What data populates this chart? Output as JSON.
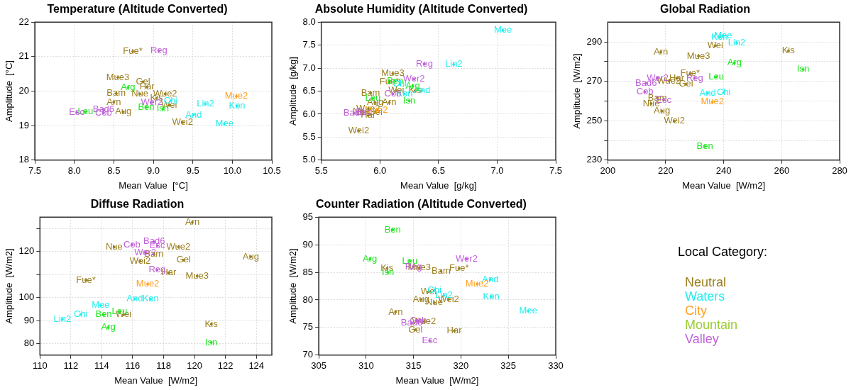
{
  "chart_data": [
    {
      "type": "scatter",
      "title": "Temperature (Altitude Converted)",
      "xlabel": "Mean Value  [°C]",
      "ylabel": "Amplitude  [°C]",
      "xlim": [
        7.5,
        10.5
      ],
      "ylim": [
        18,
        22
      ],
      "xticks": [
        7.5,
        {
          "value": 8,
          "label": "8.0"
        },
        8.5,
        {
          "value": 9,
          "label": "9.0"
        },
        9.5,
        {
          "value": 10,
          "label": "10.0"
        },
        10.5
      ],
      "yticks": [
        18,
        19,
        20,
        21,
        22
      ],
      "grid": true,
      "marker": "circle",
      "series": [
        {
          "color": "#9b7f1f",
          "x": [
            8.74,
            8.55,
            8.87,
            8.92,
            8.53,
            8.83,
            9.15,
            9.04,
            8.5,
            8.62,
            9.2,
            9.37
          ],
          "values": [
            21.15,
            20.4,
            20.27,
            20.12,
            19.93,
            19.92,
            19.92,
            19.79,
            19.68,
            19.4,
            19.59,
            19.09
          ],
          "value_labels": [
            "Fue*",
            "Mue3",
            "Gel",
            "Har",
            "Bam",
            "Nue",
            "Wue2",
            "Kis",
            "Arn",
            "Aug",
            "Wei",
            "Wei2"
          ]
        },
        {
          "color": "#22eeee",
          "x": [
            9.22,
            9.66,
            9.51,
            10.06,
            9.9
          ],
          "values": [
            19.72,
            19.63,
            19.31,
            19.57,
            19.05
          ],
          "value_labels": [
            "Chi",
            "Lin2",
            "And",
            "Kon",
            "Mee"
          ]
        },
        {
          "color": "#ffa020",
          "x": [
            10.05
          ],
          "values": [
            19.85
          ],
          "value_labels": [
            "Mue2"
          ]
        },
        {
          "color": "#22e622",
          "x": [
            8.68,
            8.91,
            9.12,
            8.14
          ],
          "values": [
            20.1,
            19.53,
            19.48,
            19.4
          ],
          "value_labels": [
            "Arg",
            "Ben",
            "Isn",
            "Leu"
          ]
        },
        {
          "color": "#c060d8",
          "x": [
            9.07,
            8.98,
            8.37,
            8.37,
            8.03
          ],
          "values": [
            21.17,
            19.67,
            19.47,
            19.37,
            19.38
          ],
          "value_labels": [
            "Reg",
            "Wer2",
            "Bad6",
            "Cob",
            "Esc"
          ]
        }
      ]
    },
    {
      "type": "scatter",
      "title": "Absolute Humidity (Altitude Converted)",
      "xlabel": "Mean Value  [g/kg]",
      "ylabel": "Amplitude  [g/kg]",
      "xlim": [
        5.5,
        7.5
      ],
      "ylim": [
        5,
        8
      ],
      "xticks": [
        5.5,
        {
          "value": 6,
          "label": "6.0"
        },
        6.5,
        {
          "value": 7,
          "label": "7.0"
        },
        7.5
      ],
      "yticks": [
        {
          "value": 5,
          "label": "5.0"
        },
        5.5,
        {
          "value": 6,
          "label": "6.0"
        },
        6.5,
        {
          "value": 7,
          "label": "7.0"
        },
        7.5,
        {
          "value": 8,
          "label": "8.0"
        }
      ],
      "grid": true,
      "marker": "circle",
      "series": [
        {
          "color": "#9b7f1f",
          "x": [
            6.08,
            6.11,
            5.96,
            5.9,
            5.92,
            5.84,
            5.9,
            6.3,
            6.08,
            5.96,
            6.14,
            5.82
          ],
          "values": [
            6.7,
            6.88,
            6.04,
            5.97,
            6.46,
            6.06,
            6.12,
            6.51,
            6.25,
            6.25,
            6.51,
            5.64
          ],
          "value_labels": [
            "Fue*",
            "Mue3",
            "Gel",
            "Har",
            "Bam",
            "Nue",
            "Wue2",
            "Kis",
            "Arn",
            "Aug",
            "Wei",
            "Wei2"
          ]
        },
        {
          "color": "#22eeee",
          "x": [
            6.17,
            6.63,
            6.36,
            6.21,
            7.05
          ],
          "values": [
            6.65,
            7.08,
            6.51,
            6.44,
            7.82
          ],
          "value_labels": [
            "Chi",
            "Lin2",
            "And",
            "Kon",
            "Mee"
          ]
        },
        {
          "color": "#ffa020",
          "x": [
            5.97
          ],
          "values": [
            6.09
          ],
          "value_labels": [
            "Mue2"
          ]
        },
        {
          "color": "#22e622",
          "x": [
            6.28,
            6.13,
            6.25,
            5.94
          ],
          "values": [
            6.61,
            6.72,
            6.29,
            6.34
          ],
          "value_labels": [
            "Arg",
            "Ben",
            "Isn",
            "Leu"
          ]
        },
        {
          "color": "#c060d8",
          "x": [
            6.38,
            6.29,
            5.78,
            6.11,
            5.86
          ],
          "values": [
            7.09,
            6.76,
            6.02,
            6.44,
            6.04
          ],
          "value_labels": [
            "Reg",
            "Wer2",
            "Bad6",
            "Cob",
            "Esc"
          ]
        }
      ]
    },
    {
      "type": "scatter",
      "title": "Global Radiation",
      "xlabel": "Mean Value  [W/m2]",
      "ylabel": "Amplitude  [W/m2]",
      "xlim": [
        200,
        280
      ],
      "ylim": [
        230,
        300
      ],
      "xticks": [
        200,
        220,
        240,
        260,
        280
      ],
      "yticks": [
        230,
        {
          "value": 240,
          "label": null
        },
        250,
        {
          "value": 260,
          "label": null
        },
        270,
        {
          "value": 280,
          "label": null
        },
        290
      ],
      "grid": true,
      "marker": "circle",
      "series": [
        {
          "color": "#9b7f1f",
          "x": [
            228.4,
            231.3,
            227,
            223.8,
            217.1,
            215,
            221.1,
            262.3,
            218.3,
            218.7,
            237.1,
            223
          ],
          "values": [
            273.9,
            282.8,
            268.5,
            271.6,
            261.6,
            258.7,
            270.2,
            285.4,
            284.8,
            254.9,
            288,
            249.8
          ],
          "value_labels": [
            "Fue*",
            "Mue3",
            "Gel",
            "Har",
            "Bam",
            "Nue",
            "Wue2",
            "Kis",
            "Arn",
            "Aug",
            "Wei",
            "Wei2"
          ]
        },
        {
          "color": "#22eeee",
          "x": [
            240,
            244.5,
            234.5,
            238.6,
            239.8
          ],
          "values": [
            264.4,
            289.4,
            263.9,
            292.3,
            293.2
          ],
          "value_labels": [
            "Chi",
            "Lin2",
            "And",
            "Kon",
            "Mee"
          ]
        },
        {
          "color": "#ffa020",
          "x": [
            236.1
          ],
          "values": [
            259.5
          ],
          "value_labels": [
            "Mue2"
          ]
        },
        {
          "color": "#22e622",
          "x": [
            243.7,
            233.5,
            267.4,
            237.4
          ],
          "values": [
            279.3,
            236.9,
            276,
            272.2
          ],
          "value_labels": [
            "Arg",
            "Ben",
            "Isn",
            "Leu"
          ]
        },
        {
          "color": "#c060d8",
          "x": [
            230,
            217.2,
            213.2,
            212.8,
            219.3
          ],
          "values": [
            271.6,
            271.6,
            269,
            264.7,
            260.5
          ],
          "value_labels": [
            "Reg",
            "Wer2",
            "Bad6",
            "Cob",
            "Esc"
          ]
        }
      ]
    },
    {
      "type": "scatter",
      "title": "Diffuse Radiation",
      "xlabel": "Mean Value  [W/m2]",
      "ylabel": "Amplitude  [W/m2]",
      "xlim": [
        110,
        125
      ],
      "ylim": [
        75,
        135
      ],
      "xticks": [
        110,
        112,
        114,
        116,
        118,
        120,
        122,
        124
      ],
      "yticks": [
        80,
        90,
        100,
        {
          "value": 110,
          "label": null
        },
        120,
        {
          "value": 130,
          "label": null
        }
      ],
      "grid": true,
      "marker": "circle",
      "series": [
        {
          "color": "#9b7f1f",
          "x": [
            112.97,
            120.17,
            119.3,
            118.34,
            117.36,
            114.8,
            118.96,
            121.08,
            119.86,
            123.64,
            115.41,
            116.48
          ],
          "values": [
            107.6,
            109.4,
            116.3,
            110.8,
            118.8,
            122,
            122.1,
            88.5,
            132.7,
            117.8,
            92.6,
            115.8
          ],
          "value_labels": [
            "Fue*",
            "Mue3",
            "Gel",
            "Har",
            "Bam",
            "Nue",
            "Wue2",
            "Kis",
            "Arn",
            "Aug",
            "Wei",
            "Wei2"
          ]
        },
        {
          "color": "#22eeee",
          "x": [
            112.64,
            111.45,
            116.13,
            117.16,
            113.93
          ],
          "values": [
            92.7,
            90.6,
            99.4,
            99.4,
            96.6
          ],
          "value_labels": [
            "Chi",
            "Lin2",
            "And",
            "Kon",
            "Mee"
          ]
        },
        {
          "color": "#ffa020",
          "x": [
            116.97
          ],
          "values": [
            105.9
          ],
          "value_labels": [
            "Mue2"
          ]
        },
        {
          "color": "#22e622",
          "x": [
            114.42,
            114.12,
            121.08,
            115.15
          ],
          "values": [
            87,
            92.6,
            80.5,
            93.9
          ],
          "value_labels": [
            "Arg",
            "Ben",
            "Isn",
            "Leu"
          ]
        },
        {
          "color": "#c060d8",
          "x": [
            117.58,
            116.81,
            117.39,
            115.95,
            117.59
          ],
          "values": [
            112.1,
            119.6,
            124.3,
            123,
            122.6
          ],
          "value_labels": [
            "Reg",
            "Wer2",
            "Bad6",
            "Cob",
            "Esc"
          ]
        }
      ]
    },
    {
      "type": "scatter",
      "title": "Counter Radiation (Altitude Converted)",
      "xlabel": "Mean Value  [W/m2]",
      "ylabel": "Amplitude  [W/m2]",
      "xlim": [
        305,
        330
      ],
      "ylim": [
        70,
        95
      ],
      "xticks": [
        305,
        310,
        315,
        320,
        325,
        330
      ],
      "yticks": [
        70,
        75,
        80,
        85,
        90,
        95
      ],
      "grid": true,
      "marker": "circle",
      "series": [
        {
          "color": "#9b7f1f",
          "x": [
            319.8,
            315.6,
            315.2,
            319.3,
            317.9,
            317.2,
            316.1,
            312.2,
            313.1,
            315.8,
            316.6,
            318.7
          ],
          "values": [
            85.7,
            85.8,
            74.6,
            74.4,
            85.2,
            79.5,
            76.1,
            85.7,
            77.8,
            80.1,
            81.5,
            80.1
          ],
          "value_labels": [
            "Fue*",
            "Mue3",
            "Gel",
            "Har",
            "Bam",
            "Nue",
            "Wue2",
            "Kis",
            "Arn",
            "Aug",
            "Wei",
            "Wei2"
          ]
        },
        {
          "color": "#22eeee",
          "x": [
            317.2,
            318.2,
            323.1,
            323.2,
            327.1
          ],
          "values": [
            81.8,
            80.8,
            83.7,
            80.6,
            78
          ],
          "value_labels": [
            "Chi",
            "Lin2",
            "And",
            "Kon",
            "Mee"
          ]
        },
        {
          "color": "#ffa020",
          "x": [
            321.7
          ],
          "values": [
            82.9
          ],
          "value_labels": [
            "Mue2"
          ]
        },
        {
          "color": "#22e622",
          "x": [
            310.4,
            312.8,
            312.3,
            314.6
          ],
          "values": [
            87.4,
            92.7,
            85,
            87
          ],
          "value_labels": [
            "Arg",
            "Ben",
            "Isn",
            "Leu"
          ]
        },
        {
          "color": "#c060d8",
          "x": [
            315,
            320.6,
            314.8,
            315.5,
            316.7
          ],
          "values": [
            86,
            87.4,
            75.8,
            76.2,
            72.6
          ],
          "value_labels": [
            "Reg",
            "Wer2",
            "Bad6",
            "Cob",
            "Esc"
          ]
        }
      ]
    },
    {
      "type": "other",
      "legend_title": "Local Category:",
      "categories": [
        "Neutral",
        "Waters",
        "City",
        "Mountain",
        "Valley"
      ],
      "colors": [
        "#9b7f1f",
        "#22eeee",
        "#ffa020",
        "#9acd32",
        "#c060d8"
      ]
    }
  ]
}
